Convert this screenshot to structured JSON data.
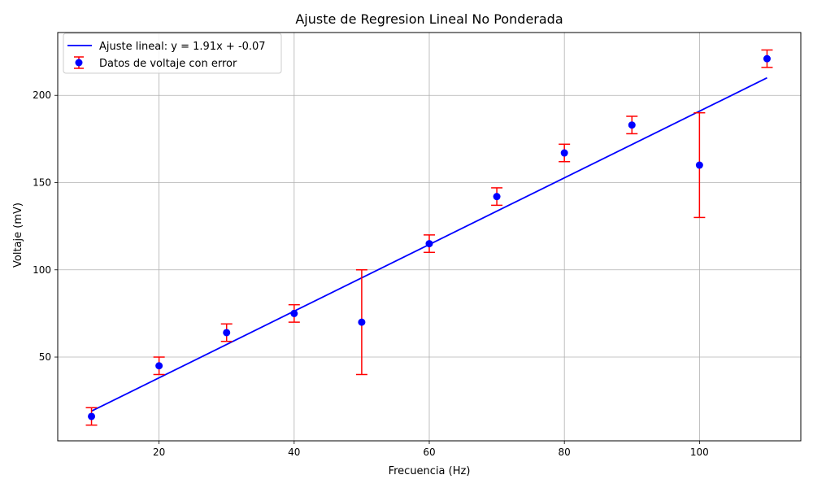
{
  "chart_data": {
    "type": "scatter",
    "title": "Ajuste de Regresion Lineal No Ponderada",
    "xlabel": "Frecuencia (Hz)",
    "ylabel": "Voltaje (mV)",
    "xlim": [
      5,
      115
    ],
    "ylim": [
      2,
      236
    ],
    "x_ticks": [
      20,
      40,
      60,
      80,
      100
    ],
    "y_ticks": [
      50,
      100,
      150,
      200
    ],
    "grid": true,
    "legend_position": "top-left",
    "series": [
      {
        "name": "Datos de voltaje con error",
        "kind": "errorbar-points",
        "marker_color": "#0000ff",
        "error_color": "#ff0000",
        "x": [
          10,
          20,
          30,
          40,
          50,
          60,
          70,
          80,
          90,
          100,
          110
        ],
        "y": [
          16,
          45,
          64,
          75,
          70,
          115,
          142,
          167,
          183,
          160,
          221
        ],
        "yerr": [
          5,
          5,
          5,
          5,
          30,
          5,
          5,
          5,
          5,
          30,
          5
        ]
      },
      {
        "name": "Ajuste lineal: y = 1.91x + -0.07",
        "kind": "line",
        "color": "#0000ff",
        "slope": 1.91,
        "intercept": -0.07,
        "x_range": [
          10,
          110
        ]
      }
    ]
  }
}
